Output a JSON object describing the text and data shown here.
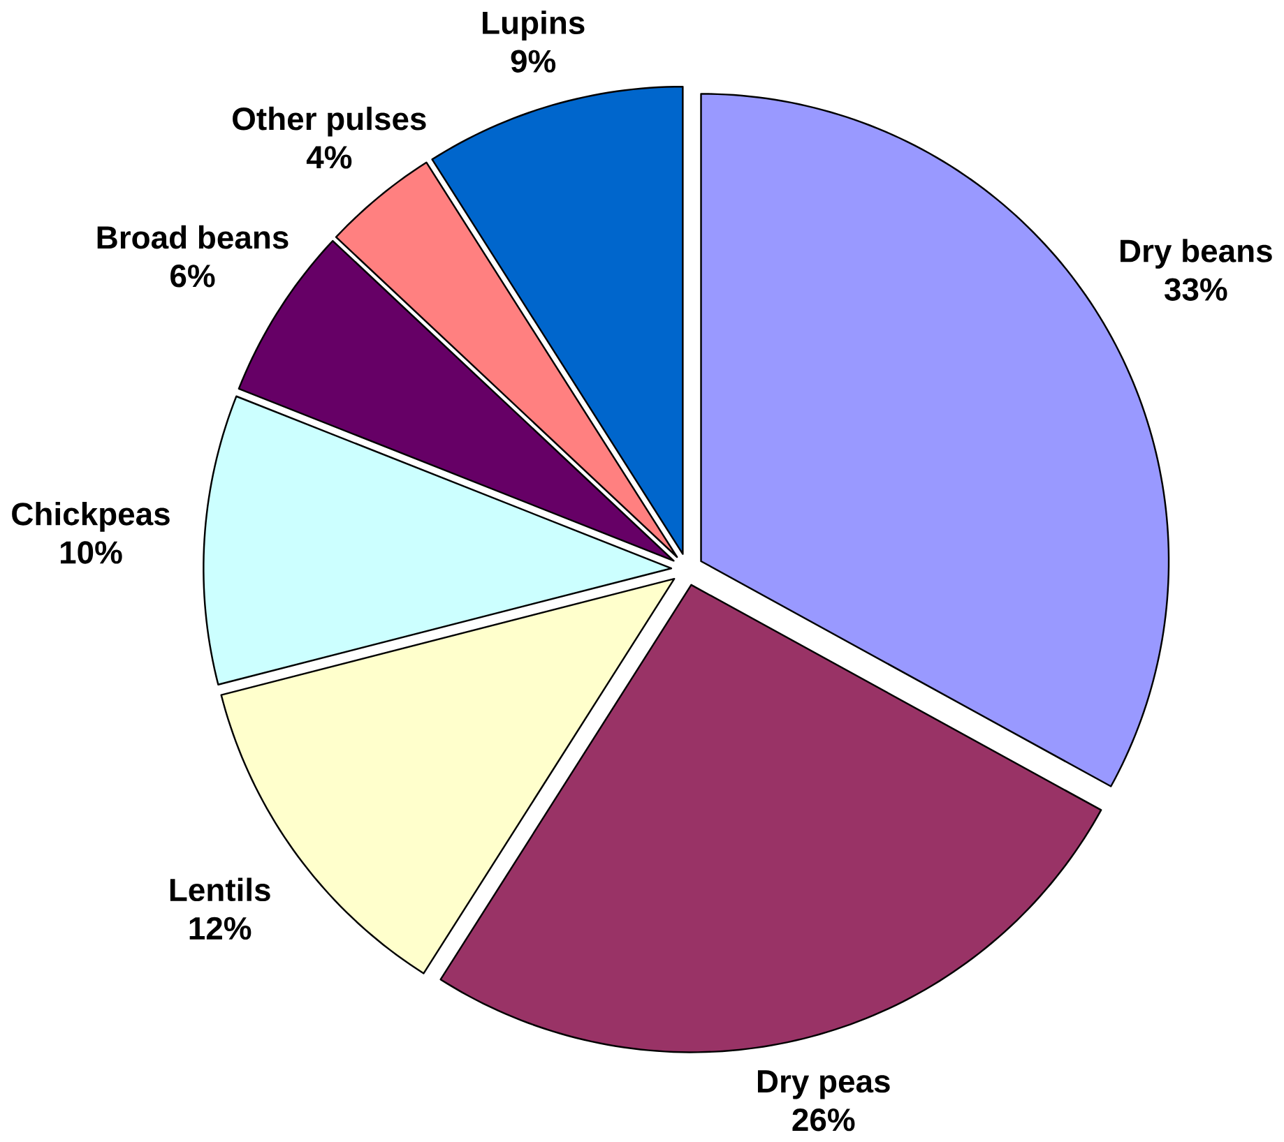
{
  "chart_data": {
    "type": "pie",
    "categories": [
      "Dry beans",
      "Dry peas",
      "Lentils",
      "Chickpeas",
      "Broad beans",
      "Other pulses",
      "Lupins"
    ],
    "values": [
      33,
      26,
      12,
      10,
      6,
      4,
      9
    ],
    "value_labels": [
      "33%",
      "26%",
      "12%",
      "10%",
      "6%",
      "4%",
      "9%"
    ],
    "colors": [
      "#9999ff",
      "#993366",
      "#ffffcc",
      "#ccffff",
      "#660066",
      "#ff8080",
      "#0066cc"
    ]
  }
}
